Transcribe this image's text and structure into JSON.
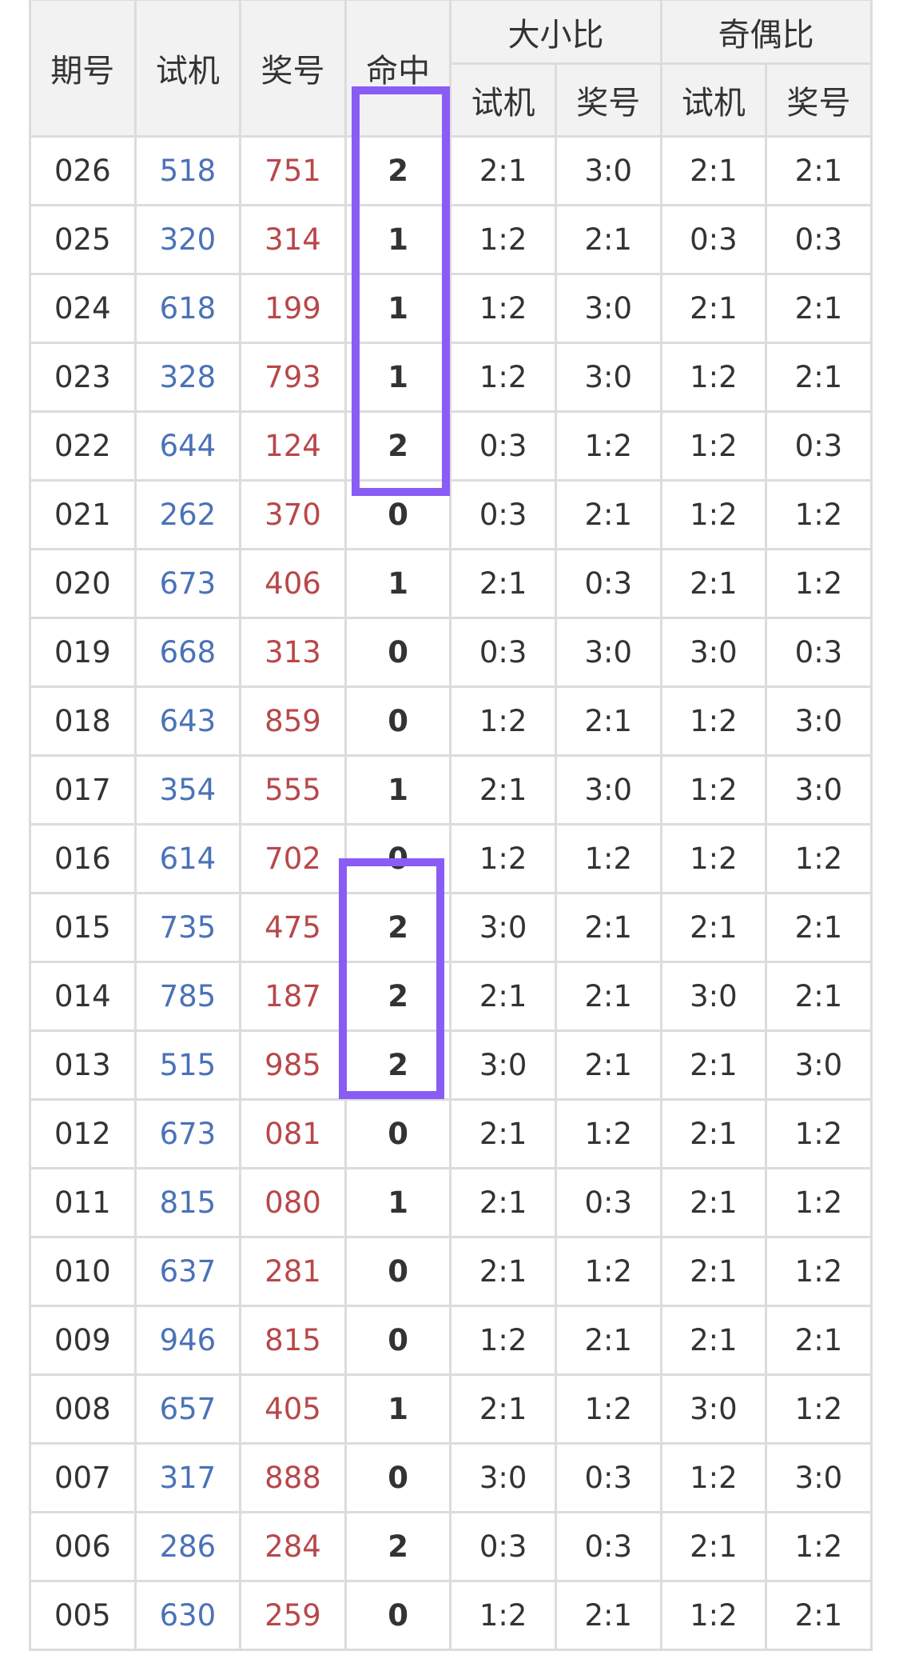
{
  "headers": {
    "period": "期号",
    "test": "试机",
    "prize": "奖号",
    "hit": "命中",
    "size_ratio": "大小比",
    "parity_ratio": "奇偶比",
    "sub_test": "试机",
    "sub_prize": "奖号"
  },
  "rows": [
    {
      "period": "026",
      "test": "518",
      "prize": "751",
      "hit": "2",
      "size_test": "2:1",
      "size_prize": "3:0",
      "parity_test": "2:1",
      "parity_prize": "2:1"
    },
    {
      "period": "025",
      "test": "320",
      "prize": "314",
      "hit": "1",
      "size_test": "1:2",
      "size_prize": "2:1",
      "parity_test": "0:3",
      "parity_prize": "0:3"
    },
    {
      "period": "024",
      "test": "618",
      "prize": "199",
      "hit": "1",
      "size_test": "1:2",
      "size_prize": "3:0",
      "parity_test": "2:1",
      "parity_prize": "2:1"
    },
    {
      "period": "023",
      "test": "328",
      "prize": "793",
      "hit": "1",
      "size_test": "1:2",
      "size_prize": "3:0",
      "parity_test": "1:2",
      "parity_prize": "2:1"
    },
    {
      "period": "022",
      "test": "644",
      "prize": "124",
      "hit": "2",
      "size_test": "0:3",
      "size_prize": "1:2",
      "parity_test": "1:2",
      "parity_prize": "0:3"
    },
    {
      "period": "021",
      "test": "262",
      "prize": "370",
      "hit": "0",
      "size_test": "0:3",
      "size_prize": "2:1",
      "parity_test": "1:2",
      "parity_prize": "1:2"
    },
    {
      "period": "020",
      "test": "673",
      "prize": "406",
      "hit": "1",
      "size_test": "2:1",
      "size_prize": "0:3",
      "parity_test": "2:1",
      "parity_prize": "1:2"
    },
    {
      "period": "019",
      "test": "668",
      "prize": "313",
      "hit": "0",
      "size_test": "0:3",
      "size_prize": "3:0",
      "parity_test": "3:0",
      "parity_prize": "0:3"
    },
    {
      "period": "018",
      "test": "643",
      "prize": "859",
      "hit": "0",
      "size_test": "1:2",
      "size_prize": "2:1",
      "parity_test": "1:2",
      "parity_prize": "3:0"
    },
    {
      "period": "017",
      "test": "354",
      "prize": "555",
      "hit": "1",
      "size_test": "2:1",
      "size_prize": "3:0",
      "parity_test": "1:2",
      "parity_prize": "3:0"
    },
    {
      "period": "016",
      "test": "614",
      "prize": "702",
      "hit": "0",
      "size_test": "1:2",
      "size_prize": "1:2",
      "parity_test": "1:2",
      "parity_prize": "1:2"
    },
    {
      "period": "015",
      "test": "735",
      "prize": "475",
      "hit": "2",
      "size_test": "3:0",
      "size_prize": "2:1",
      "parity_test": "2:1",
      "parity_prize": "2:1"
    },
    {
      "period": "014",
      "test": "785",
      "prize": "187",
      "hit": "2",
      "size_test": "2:1",
      "size_prize": "2:1",
      "parity_test": "3:0",
      "parity_prize": "2:1"
    },
    {
      "period": "013",
      "test": "515",
      "prize": "985",
      "hit": "2",
      "size_test": "3:0",
      "size_prize": "2:1",
      "parity_test": "2:1",
      "parity_prize": "3:0"
    },
    {
      "period": "012",
      "test": "673",
      "prize": "081",
      "hit": "0",
      "size_test": "2:1",
      "size_prize": "1:2",
      "parity_test": "2:1",
      "parity_prize": "1:2"
    },
    {
      "period": "011",
      "test": "815",
      "prize": "080",
      "hit": "1",
      "size_test": "2:1",
      "size_prize": "0:3",
      "parity_test": "2:1",
      "parity_prize": "1:2"
    },
    {
      "period": "010",
      "test": "637",
      "prize": "281",
      "hit": "0",
      "size_test": "2:1",
      "size_prize": "1:2",
      "parity_test": "2:1",
      "parity_prize": "1:2"
    },
    {
      "period": "009",
      "test": "946",
      "prize": "815",
      "hit": "0",
      "size_test": "1:2",
      "size_prize": "2:1",
      "parity_test": "2:1",
      "parity_prize": "2:1"
    },
    {
      "period": "008",
      "test": "657",
      "prize": "405",
      "hit": "1",
      "size_test": "2:1",
      "size_prize": "1:2",
      "parity_test": "3:0",
      "parity_prize": "1:2"
    },
    {
      "period": "007",
      "test": "317",
      "prize": "888",
      "hit": "0",
      "size_test": "3:0",
      "size_prize": "0:3",
      "parity_test": "1:2",
      "parity_prize": "3:0"
    },
    {
      "period": "006",
      "test": "286",
      "prize": "284",
      "hit": "2",
      "size_test": "0:3",
      "size_prize": "0:3",
      "parity_test": "2:1",
      "parity_prize": "1:2"
    },
    {
      "period": "005",
      "test": "630",
      "prize": "259",
      "hit": "0",
      "size_test": "1:2",
      "size_prize": "2:1",
      "parity_test": "1:2",
      "parity_prize": "2:1"
    }
  ],
  "colors": {
    "test_number": "#4a72b8",
    "prize_number": "#b8474a",
    "highlight_box": "#8a5cf6",
    "header_bg": "#f2f2f2",
    "grid": "#dcdcdc"
  }
}
